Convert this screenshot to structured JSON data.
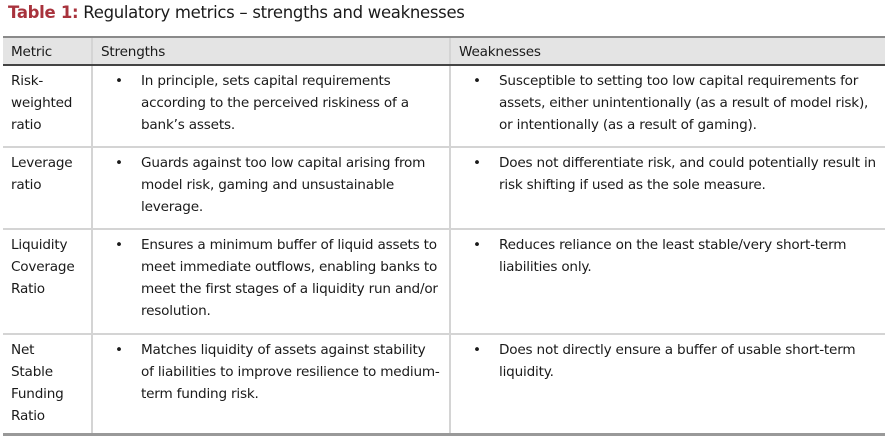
{
  "title": {
    "label": "Table 1:",
    "text": " Regulatory metrics – strengths and weaknesses"
  },
  "headers": [
    "Metric",
    "Strengths",
    "Weaknesses"
  ],
  "rows": [
    {
      "metric": "Risk-weighted ratio",
      "strength": "In principle, sets capital requirements according to the perceived riskiness of a bank’s assets.",
      "weakness": "Susceptible to setting too low capital requirements for assets, either unintentionally (as a result of model risk), or intentionally (as a result of gaming)."
    },
    {
      "metric": "Leverage ratio",
      "strength": "Guards against too low capital arising from model risk, gaming and unsustainable leverage.",
      "weakness": "Does not differentiate risk, and could potentially result in risk shifting if used as the sole measure."
    },
    {
      "metric": "Liquidity Coverage Ratio",
      "strength": "Ensures a minimum buffer of liquid assets to meet immediate outflows, enabling banks to meet the first stages of a liquidity run and/or resolution.",
      "weakness": "Reduces reliance on the least stable/very short-term liabilities only."
    },
    {
      "metric": "Net Stable Funding Ratio",
      "strength": "Matches liquidity of assets against stability of liabilities to improve resilience to medium-term funding risk.",
      "weakness": "Does not directly ensure a buffer of usable short-term liquidity."
    }
  ]
}
